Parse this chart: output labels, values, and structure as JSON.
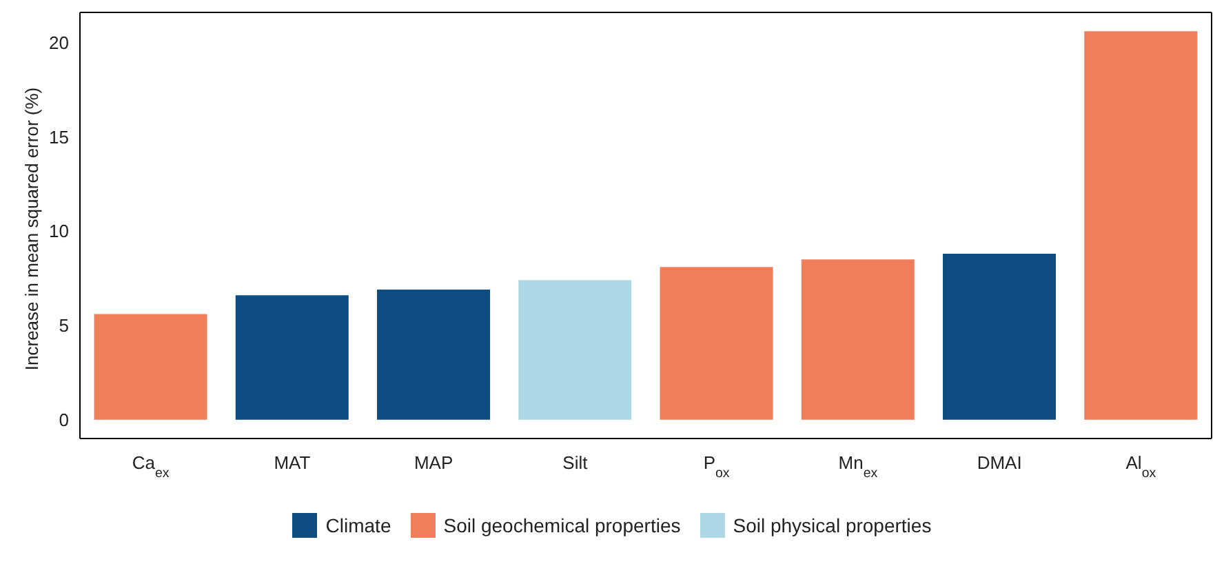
{
  "chart_data": {
    "type": "bar",
    "ylabel": "Increase in mean squared error (%)",
    "categories": [
      "Ca$_{ex}$",
      "MAT",
      "MAP",
      "Silt",
      "P$_{ox}$",
      "Mn$_{ex}$",
      "DMAI",
      "Al$_{ox}$"
    ],
    "series": [
      {
        "name": "Climate",
        "color": "#0f4c81",
        "values": [
          null,
          6.6,
          6.9,
          null,
          null,
          null,
          8.8,
          null
        ]
      },
      {
        "name": "Soil geochemical properties",
        "color": "#ef7f5a",
        "values": [
          5.6,
          null,
          null,
          null,
          8.1,
          8.5,
          null,
          20.6
        ]
      },
      {
        "name": "Soil physical properties",
        "color": "#add8e6",
        "values": [
          null,
          null,
          null,
          7.4,
          null,
          null,
          null,
          null
        ]
      }
    ],
    "stacked": true,
    "ylim": [
      -1,
      21.6
    ],
    "yticks": [
      0,
      5,
      10,
      15,
      20
    ],
    "grid": false,
    "legend": "bottom"
  }
}
